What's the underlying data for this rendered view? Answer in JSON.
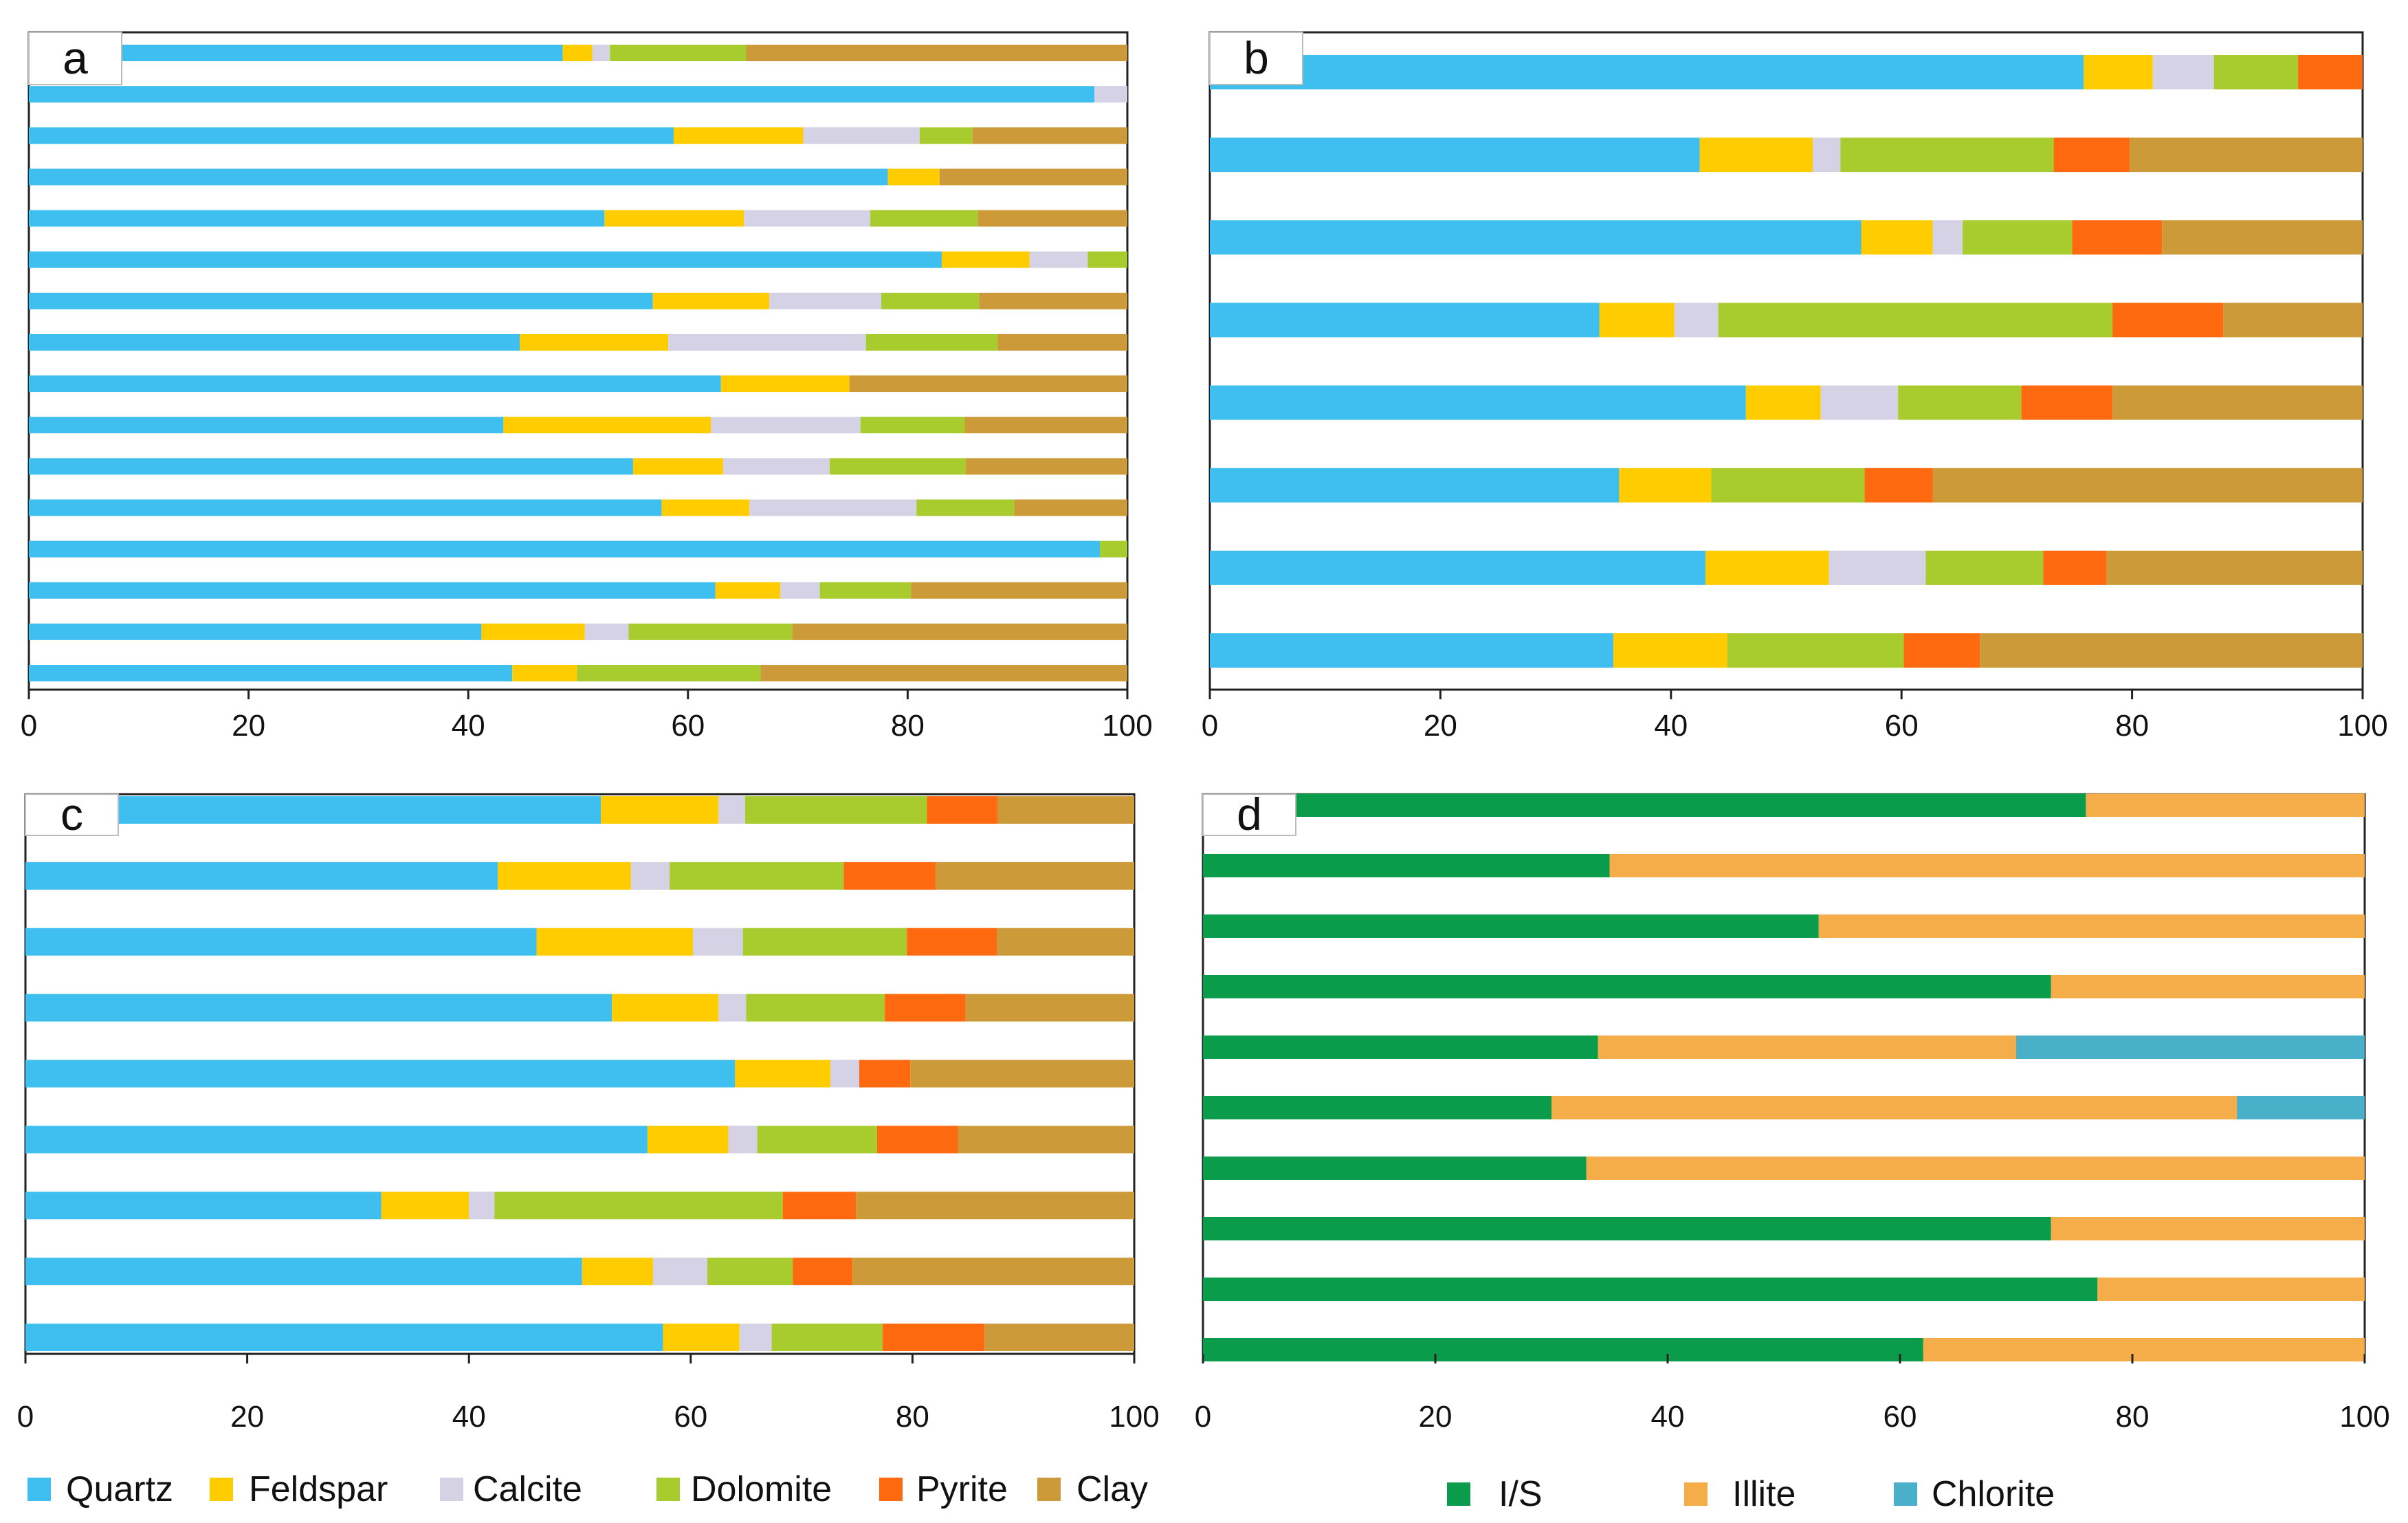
{
  "colors": {
    "Quartz": "#3fbfef",
    "Feldspar": "#ffcc00",
    "Calcite": "#d6d2e6",
    "Dolomite": "#a8cc2e",
    "Pyrite": "#ff6a10",
    "Clay": "#cc9a38",
    "I/S": "#0a9c4a",
    "Illite": "#f5ad4a",
    "Chlorite": "#4aafc8"
  },
  "legends": {
    "mineral": [
      "Quartz",
      "Feldspar",
      "Calcite",
      "Dolomite",
      "Pyrite",
      "Clay"
    ],
    "clay": [
      "I/S",
      "Illite",
      "Chlorite"
    ]
  },
  "chart_data": [
    {
      "panel": "a",
      "type": "bar",
      "orientation": "horizontal",
      "stacked": true,
      "xlim": [
        0,
        100
      ],
      "xticks": [
        0,
        20,
        40,
        60,
        80,
        100
      ],
      "series": [
        {
          "name": "Quartz",
          "values": [
            48.6,
            97,
            58.7,
            78.2,
            52.4,
            83.1,
            56.8,
            44.7,
            63.0,
            43.2,
            55.0,
            57.6,
            97.5,
            62.5,
            41.2,
            44.0
          ]
        },
        {
          "name": "Feldspar",
          "values": [
            2.7,
            0,
            11.8,
            4.7,
            12.7,
            8.0,
            10.6,
            13.5,
            11.7,
            18.9,
            8.2,
            8.0,
            0,
            5.9,
            9.4,
            5.9
          ]
        },
        {
          "name": "Calcite",
          "values": [
            1.6,
            3,
            10.6,
            0,
            11.5,
            5.3,
            10.2,
            18.0,
            0,
            13.6,
            9.7,
            15.2,
            0,
            3.6,
            4.0,
            0
          ]
        },
        {
          "name": "Dolomite",
          "values": [
            12.4,
            0,
            4.8,
            0,
            9.8,
            3.6,
            8.9,
            12.0,
            0,
            9.5,
            12.4,
            8.9,
            2.5,
            8.3,
            14.9,
            16.7
          ]
        },
        {
          "name": "Pyrite",
          "values": [
            0,
            0,
            0,
            0,
            0,
            0,
            0,
            0,
            0,
            0,
            0,
            0,
            0,
            0,
            0,
            0
          ]
        },
        {
          "name": "Clay",
          "values": [
            34.7,
            0,
            14.1,
            17.1,
            13.6,
            0,
            13.5,
            11.8,
            25.3,
            14.8,
            14.7,
            10.3,
            0,
            19.7,
            30.5,
            33.4
          ]
        }
      ]
    },
    {
      "panel": "b",
      "type": "bar",
      "orientation": "horizontal",
      "stacked": true,
      "xlim": [
        0,
        100
      ],
      "xticks": [
        0,
        20,
        40,
        60,
        80,
        100
      ],
      "series": [
        {
          "name": "Quartz",
          "values": [
            75.8,
            42.5,
            56.5,
            33.8,
            46.5,
            35.5,
            43.0,
            35.0
          ]
        },
        {
          "name": "Feldspar",
          "values": [
            6.0,
            9.8,
            6.2,
            6.5,
            6.5,
            8.0,
            10.7,
            9.9
          ]
        },
        {
          "name": "Calcite",
          "values": [
            5.3,
            2.4,
            2.6,
            3.8,
            6.7,
            0,
            8.4,
            0
          ]
        },
        {
          "name": "Dolomite",
          "values": [
            7.3,
            18.5,
            9.5,
            34.2,
            10.7,
            13.3,
            10.2,
            15.3
          ]
        },
        {
          "name": "Pyrite",
          "values": [
            5.6,
            6.6,
            7.8,
            9.6,
            7.9,
            5.9,
            5.5,
            6.6
          ]
        },
        {
          "name": "Clay",
          "values": [
            0,
            20.2,
            17.4,
            12.1,
            21.7,
            37.3,
            22.2,
            33.2
          ]
        }
      ]
    },
    {
      "panel": "c",
      "type": "bar",
      "orientation": "horizontal",
      "stacked": true,
      "xlim": [
        0,
        100
      ],
      "xticks": [
        0,
        20,
        40,
        60,
        80,
        100
      ],
      "series": [
        {
          "name": "Quartz",
          "values": [
            51.9,
            42.6,
            46.1,
            52.9,
            64.0,
            56.1,
            32.1,
            50.2,
            57.5
          ]
        },
        {
          "name": "Feldspar",
          "values": [
            10.6,
            12.0,
            14.1,
            9.6,
            8.6,
            7.3,
            7.9,
            6.4,
            6.9
          ]
        },
        {
          "name": "Calcite",
          "values": [
            2.4,
            3.5,
            4.5,
            2.5,
            2.6,
            2.6,
            2.3,
            4.9,
            2.9
          ]
        },
        {
          "name": "Dolomite",
          "values": [
            16.4,
            15.7,
            14.8,
            12.5,
            0,
            10.8,
            26.0,
            7.7,
            10.0
          ]
        },
        {
          "name": "Pyrite",
          "values": [
            6.4,
            8.3,
            8.1,
            7.3,
            4.6,
            7.3,
            6.6,
            5.4,
            9.2
          ]
        },
        {
          "name": "Clay",
          "values": [
            12.3,
            17.9,
            12.4,
            15.2,
            20.2,
            15.9,
            25.1,
            25.4,
            13.5
          ]
        }
      ]
    },
    {
      "panel": "d",
      "type": "bar",
      "orientation": "horizontal",
      "stacked": true,
      "xlim": [
        0,
        100
      ],
      "xticks": [
        0,
        20,
        40,
        60,
        80,
        100
      ],
      "series": [
        {
          "name": "I/S",
          "values": [
            76,
            35,
            53,
            73,
            34,
            30,
            33,
            73,
            77,
            62
          ]
        },
        {
          "name": "Illite",
          "values": [
            24,
            65,
            47,
            27,
            36,
            59,
            67,
            27,
            23,
            38
          ]
        },
        {
          "name": "Chlorite",
          "values": [
            0,
            0,
            0,
            0,
            30,
            11,
            0,
            0,
            0,
            0
          ]
        }
      ]
    }
  ]
}
